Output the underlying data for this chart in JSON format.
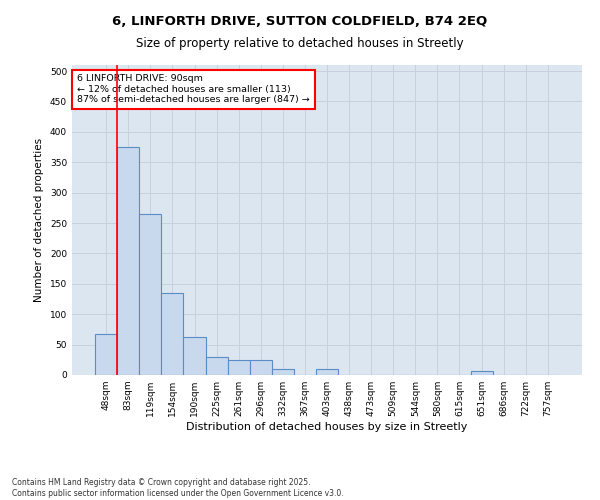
{
  "title_line1": "6, LINFORTH DRIVE, SUTTON COLDFIELD, B74 2EQ",
  "title_line2": "Size of property relative to detached houses in Streetly",
  "xlabel": "Distribution of detached houses by size in Streetly",
  "ylabel": "Number of detached properties",
  "categories": [
    "48sqm",
    "83sqm",
    "119sqm",
    "154sqm",
    "190sqm",
    "225sqm",
    "261sqm",
    "296sqm",
    "332sqm",
    "367sqm",
    "403sqm",
    "438sqm",
    "473sqm",
    "509sqm",
    "544sqm",
    "580sqm",
    "615sqm",
    "651sqm",
    "686sqm",
    "722sqm",
    "757sqm"
  ],
  "values": [
    68,
    375,
    265,
    135,
    62,
    30,
    25,
    25,
    10,
    0,
    10,
    0,
    0,
    0,
    0,
    0,
    0,
    7,
    0,
    0,
    0
  ],
  "bar_color": "#c8d9ee",
  "bar_edge_color": "#5b8cc8",
  "bar_linewidth": 0.8,
  "annotation_text_line1": "6 LINFORTH DRIVE: 90sqm",
  "annotation_text_line2": "← 12% of detached houses are smaller (113)",
  "annotation_text_line3": "87% of semi-detached houses are larger (847) →",
  "red_line_x": 0.5,
  "ylim": [
    0,
    510
  ],
  "yticks": [
    0,
    50,
    100,
    150,
    200,
    250,
    300,
    350,
    400,
    450,
    500
  ],
  "grid_color": "#c8d0dc",
  "bg_color": "#dce6f0",
  "footnote_line1": "Contains HM Land Registry data © Crown copyright and database right 2025.",
  "footnote_line2": "Contains public sector information licensed under the Open Government Licence v3.0.",
  "title_fontsize": 9.5,
  "subtitle_fontsize": 8.5,
  "ylabel_fontsize": 7.5,
  "xlabel_fontsize": 8,
  "tick_fontsize": 6.5,
  "annot_fontsize": 6.8,
  "footnote_fontsize": 5.5
}
